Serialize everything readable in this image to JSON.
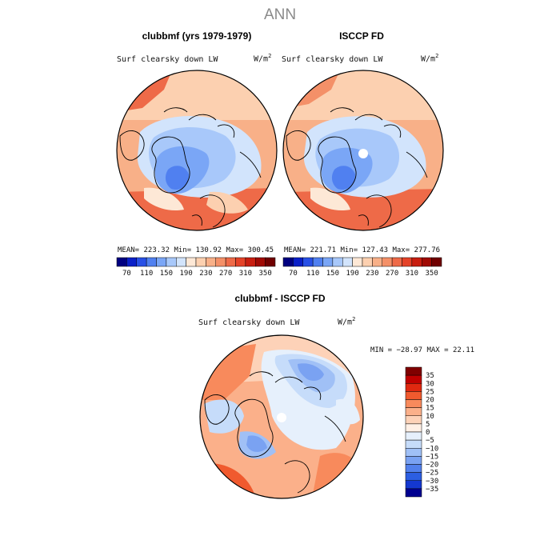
{
  "page": {
    "title": "ANN"
  },
  "panels": [
    {
      "title": "clubbmf (yrs 1979-1979)",
      "variable": "Surf clearsky down LW",
      "units_base": "W/m",
      "units_exp": "2",
      "stats": "MEAN= 223.32   Min= 130.92   Max= 300.45",
      "colorbar_labels": [
        "70",
        "110",
        "150",
        "190",
        "230",
        "270",
        "310",
        "350"
      ]
    },
    {
      "title": "ISCCP FD",
      "variable": "Surf clearsky down LW",
      "units_base": "W/m",
      "units_exp": "2",
      "stats": "MEAN= 221.71   Min= 127.43   Max= 277.76",
      "colorbar_labels": [
        "70",
        "110",
        "150",
        "190",
        "230",
        "270",
        "310",
        "350"
      ]
    }
  ],
  "diff": {
    "title": "clubbmf - ISCCP FD",
    "variable": "Surf clearsky down LW",
    "units_base": "W/m",
    "units_exp": "2",
    "stats": "MIN = −28.97 MAX =  22.11",
    "colorbar_labels": [
      "35",
      "30",
      "25",
      "20",
      "15",
      "10",
      "5",
      "0",
      "−5",
      "−10",
      "−15",
      "−20",
      "−25",
      "−30",
      "−35"
    ]
  },
  "colors": {
    "abs_scale": [
      "#000080",
      "#0a20c8",
      "#2850e6",
      "#5080f0",
      "#7aa6f6",
      "#a8c8fa",
      "#d2e4fc",
      "#fde8d6",
      "#fcd0b0",
      "#f8b088",
      "#f49068",
      "#ee6a48",
      "#e44228",
      "#c81e10",
      "#a00a04",
      "#700000"
    ],
    "diff_scale": [
      "#800000",
      "#c00000",
      "#e02810",
      "#f05a2e",
      "#f88a5c",
      "#fbb08a",
      "#fdd2b8",
      "#fff0e6",
      "#e6f0fc",
      "#c6dcfa",
      "#a0c0f6",
      "#7aa2f2",
      "#5280ec",
      "#2c5ee2",
      "#1438d0",
      "#000090"
    ]
  }
}
